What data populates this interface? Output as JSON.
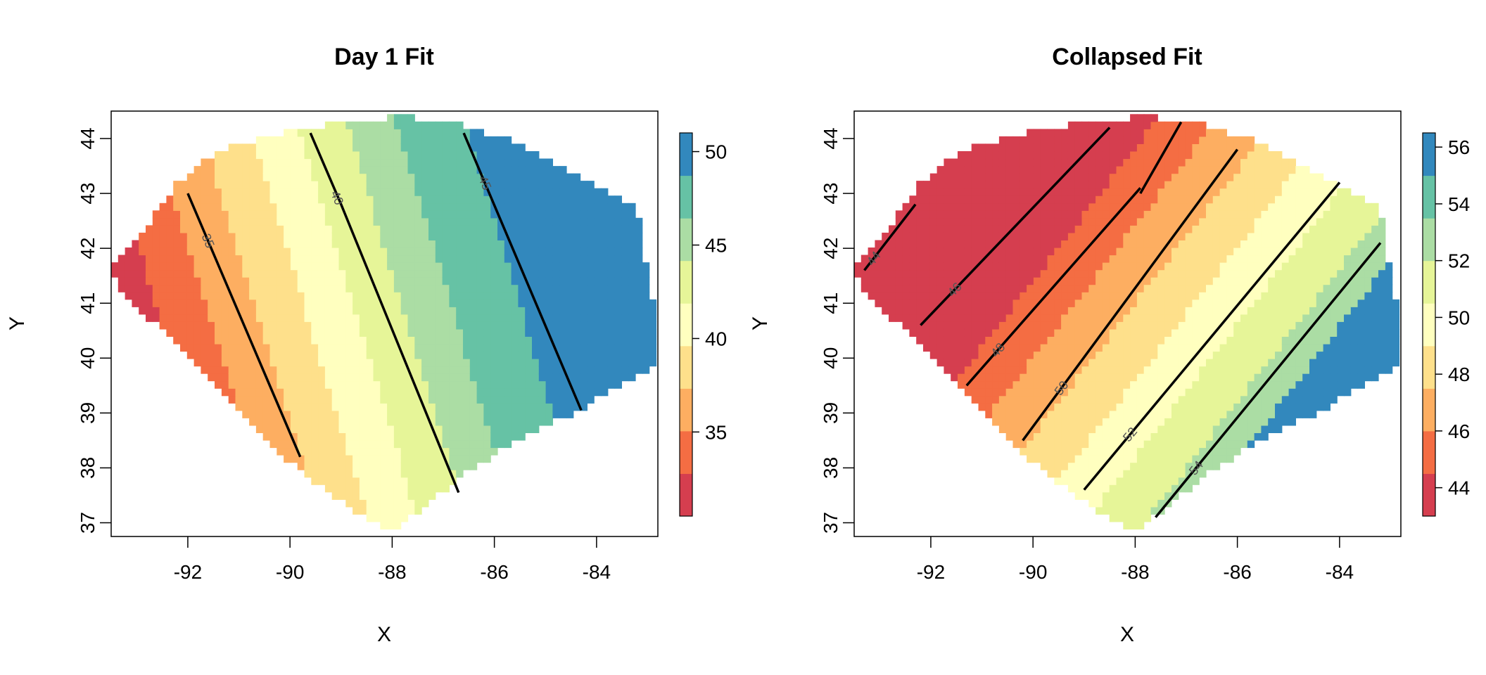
{
  "chart_data": [
    {
      "type": "heatmap",
      "title": "Day 1 Fit",
      "xlabel": "X",
      "ylabel": "Y",
      "xlim": [
        -93.5,
        -82.8
      ],
      "ylim": [
        36.75,
        44.5
      ],
      "x_ticks": [
        "-92",
        "-90",
        "-88",
        "-86",
        "-84"
      ],
      "y_ticks": [
        "37",
        "38",
        "39",
        "40",
        "41",
        "42",
        "43",
        "44"
      ],
      "color_levels": [
        30.5,
        32.5,
        35,
        37.5,
        40,
        42.5,
        45,
        47.5,
        51
      ],
      "colors": [
        "#D53E4F",
        "#F46D43",
        "#FDAE61",
        "#FEE08B",
        "#FFFFBF",
        "#E6F598",
        "#ABDDA4",
        "#66C2A5",
        "#3288BD"
      ],
      "colorbar_ticks": [
        "35",
        "40",
        "45",
        "50"
      ],
      "contours": [
        {
          "label": "35",
          "points": [
            [
              -92.0,
              43.0
            ],
            [
              -89.8,
              38.2
            ]
          ]
        },
        {
          "label": "40",
          "points": [
            [
              -89.6,
              44.1
            ],
            [
              -89.0,
              42.8
            ],
            [
              -86.7,
              37.55
            ]
          ]
        },
        {
          "label": "45",
          "points": [
            [
              -86.6,
              44.1
            ],
            [
              -84.3,
              39.05
            ]
          ]
        }
      ]
    },
    {
      "type": "heatmap",
      "title": "Collapsed Fit",
      "xlabel": "X",
      "ylabel": "Y",
      "xlim": [
        -93.5,
        -82.8
      ],
      "ylim": [
        36.75,
        44.5
      ],
      "x_ticks": [
        "-92",
        "-90",
        "-88",
        "-86",
        "-84"
      ],
      "y_ticks": [
        "37",
        "38",
        "39",
        "40",
        "41",
        "42",
        "43",
        "44"
      ],
      "color_levels": [
        43,
        45,
        47,
        49,
        51,
        53,
        55,
        56.5
      ],
      "colors": [
        "#D53E4F",
        "#F46D43",
        "#FDAE61",
        "#FEE08B",
        "#FFFFBF",
        "#E6F598",
        "#ABDDA4",
        "#66C2A5",
        "#3288BD"
      ],
      "colorbar_ticks": [
        "44",
        "46",
        "48",
        "50",
        "52",
        "54",
        "56"
      ],
      "contours": [
        {
          "label": "44",
          "points": [
            [
              -93.3,
              41.6
            ],
            [
              -92.3,
              42.8
            ]
          ]
        },
        {
          "label": "46",
          "points": [
            [
              -92.2,
              40.6
            ],
            [
              -88.5,
              44.2
            ]
          ]
        },
        {
          "label": "48",
          "points": [
            [
              -91.3,
              39.5
            ],
            [
              -87.9,
              43.1
            ]
          ]
        },
        {
          "label": "",
          "points": [
            [
              -87.9,
              43.0
            ],
            [
              -87.1,
              44.3
            ]
          ]
        },
        {
          "label": "50",
          "points": [
            [
              -90.2,
              38.5
            ],
            [
              -86.0,
              43.8
            ]
          ]
        },
        {
          "label": "52",
          "points": [
            [
              -89.0,
              37.6
            ],
            [
              -84.0,
              43.2
            ]
          ]
        },
        {
          "label": "54",
          "points": [
            [
              -87.6,
              37.1
            ],
            [
              -83.2,
              42.1
            ]
          ]
        }
      ]
    }
  ]
}
